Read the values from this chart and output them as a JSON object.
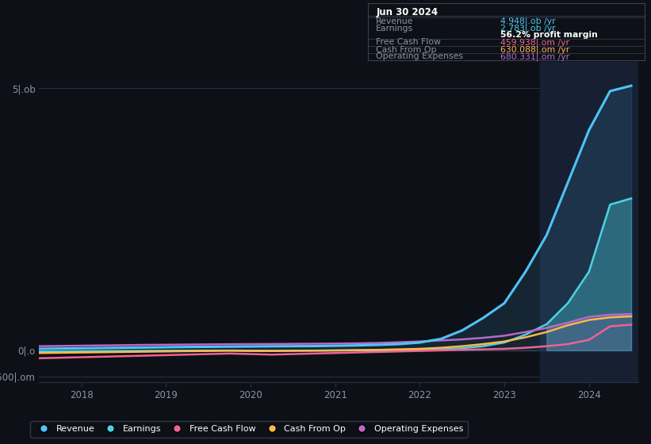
{
  "background_color": "#0d1117",
  "title": "Jun 30 2024",
  "info_box_rows": [
    {
      "label": "Revenue",
      "value": "4.948|.ob /yr",
      "color": "#4fc3f7"
    },
    {
      "label": "Earnings",
      "value": "2.783|.ob /yr",
      "color": "#4dd0e1"
    },
    {
      "label": "",
      "value": "56.2% profit margin",
      "color": "#ffffff"
    },
    {
      "label": "Free Cash Flow",
      "value": "459.938|.om /yr",
      "color": "#f06292"
    },
    {
      "label": "Cash From Op",
      "value": "630.088|.om /yr",
      "color": "#ffb74d"
    },
    {
      "label": "Operating Expenses",
      "value": "680.331|.om /yr",
      "color": "#ba68c8"
    }
  ],
  "ytick_labels": [
    "5|.ob",
    "0|.o",
    "-500|.om"
  ],
  "ytick_values": [
    5000,
    0,
    -500
  ],
  "xticks": [
    2018,
    2019,
    2020,
    2021,
    2022,
    2023,
    2024
  ],
  "legend": [
    {
      "label": "Revenue",
      "color": "#4fc3f7"
    },
    {
      "label": "Earnings",
      "color": "#4dd0e1"
    },
    {
      "label": "Free Cash Flow",
      "color": "#f06292"
    },
    {
      "label": "Cash From Op",
      "color": "#ffb74d"
    },
    {
      "label": "Operating Expenses",
      "color": "#ba68c8"
    }
  ],
  "series": {
    "x": [
      2017.5,
      2017.75,
      2018.0,
      2018.25,
      2018.5,
      2018.75,
      2019.0,
      2019.25,
      2019.5,
      2019.75,
      2020.0,
      2020.25,
      2020.5,
      2020.75,
      2021.0,
      2021.25,
      2021.5,
      2021.75,
      2022.0,
      2022.25,
      2022.5,
      2022.75,
      2023.0,
      2023.25,
      2023.5,
      2023.75,
      2024.0,
      2024.25,
      2024.5
    ],
    "revenue": [
      30,
      35,
      40,
      45,
      50,
      55,
      60,
      65,
      68,
      72,
      75,
      78,
      80,
      82,
      88,
      95,
      105,
      120,
      150,
      220,
      380,
      620,
      900,
      1500,
      2200,
      3200,
      4200,
      4948,
      5050
    ],
    "earnings": [
      -20,
      -18,
      -15,
      -12,
      -10,
      -8,
      -5,
      -4,
      -3,
      -2,
      -5,
      -6,
      -4,
      -3,
      -2,
      0,
      2,
      5,
      10,
      20,
      40,
      80,
      150,
      300,
      500,
      900,
      1500,
      2783,
      2900
    ],
    "free_cash_flow": [
      -150,
      -140,
      -130,
      -120,
      -110,
      -100,
      -90,
      -80,
      -70,
      -60,
      -70,
      -80,
      -70,
      -60,
      -50,
      -40,
      -30,
      -20,
      -10,
      0,
      10,
      20,
      30,
      50,
      80,
      120,
      200,
      459,
      490
    ],
    "cash_from_op": [
      -50,
      -45,
      -40,
      -35,
      -30,
      -25,
      -20,
      -15,
      -10,
      -5,
      -10,
      -12,
      -8,
      -5,
      0,
      5,
      10,
      20,
      30,
      50,
      80,
      120,
      170,
      250,
      350,
      480,
      580,
      630,
      650
    ],
    "operating_expenses": [
      80,
      85,
      90,
      95,
      100,
      105,
      108,
      112,
      115,
      118,
      120,
      122,
      125,
      128,
      130,
      135,
      142,
      155,
      170,
      190,
      210,
      240,
      280,
      350,
      430,
      530,
      640,
      680,
      695
    ]
  },
  "highlight_xstart": 2023.42,
  "highlight_xend": 2024.58,
  "ylim": [
    -600,
    5500
  ],
  "xlim": [
    2017.5,
    2024.58
  ]
}
